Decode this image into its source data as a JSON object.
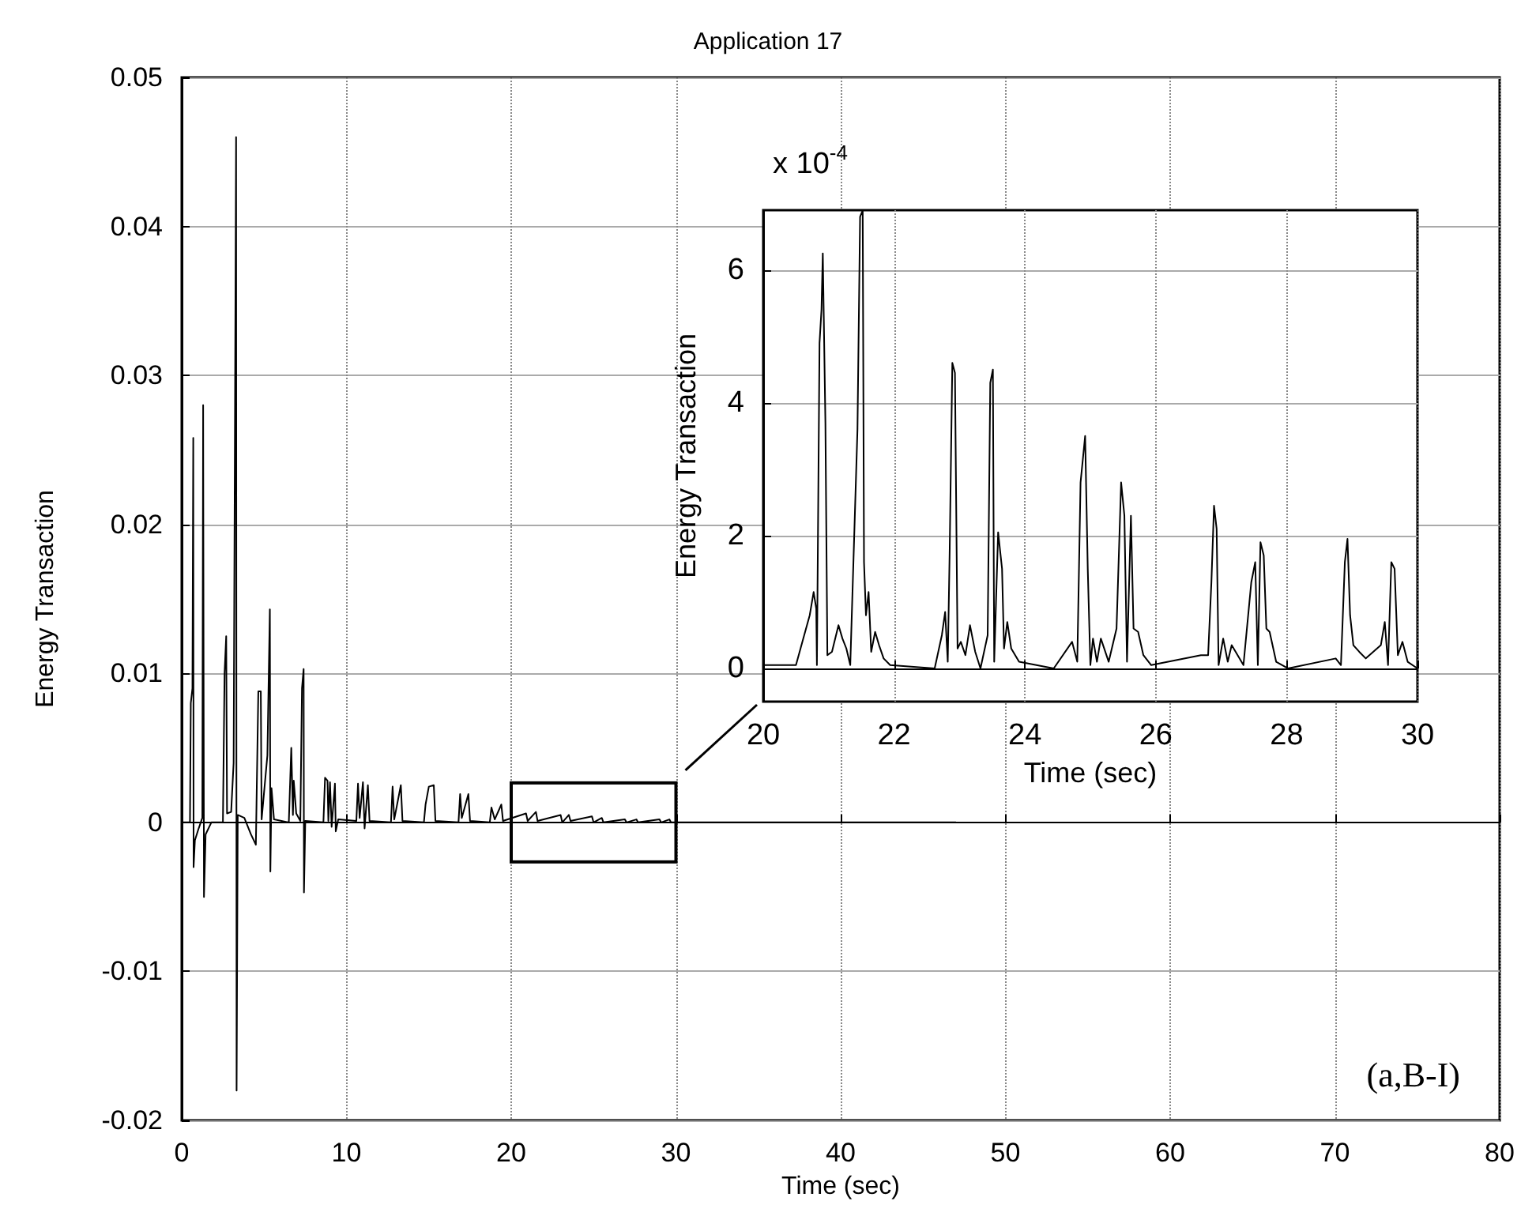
{
  "chart_data": [
    {
      "type": "line",
      "title": "Application 17",
      "xlabel": "Time (sec)",
      "ylabel": "Energy Transaction",
      "xlim": [
        0,
        80
      ],
      "xticks": [
        0,
        10,
        20,
        30,
        40,
        50,
        60,
        70,
        80
      ],
      "ylim": [
        -0.02,
        0.05
      ],
      "yticks": [
        -0.02,
        -0.01,
        0,
        0.01,
        0.02,
        0.03,
        0.04,
        0.05
      ],
      "grid": true,
      "marker": "none",
      "annotations": [
        "(a,B-I)"
      ],
      "x": [
        0,
        0.5,
        0.55,
        0.65,
        0.7,
        0.72,
        0.8,
        1.0,
        1.25,
        1.3,
        1.35,
        1.45,
        1.8,
        2.5,
        2.6,
        2.7,
        2.75,
        3.0,
        3.15,
        3.3,
        3.33,
        3.4,
        3.8,
        4.2,
        4.5,
        4.65,
        4.8,
        4.85,
        5.2,
        5.35,
        5.38,
        5.45,
        5.6,
        6.5,
        6.65,
        6.75,
        6.8,
        6.95,
        7.2,
        7.3,
        7.4,
        7.42,
        7.5,
        8.6,
        8.7,
        8.85,
        8.9,
        9.0,
        9.1,
        9.3,
        9.35,
        9.5,
        10.6,
        10.7,
        10.8,
        11.0,
        11.1,
        11.3,
        11.4,
        12.7,
        12.8,
        12.9,
        13.3,
        13.4,
        14.7,
        14.8,
        15.0,
        15.3,
        15.4,
        16.8,
        16.9,
        17.0,
        17.4,
        17.5,
        18.7,
        18.8,
        19.0,
        19.4,
        19.5,
        20.9,
        21.0,
        21.5,
        21.6,
        23.0,
        23.1,
        23.5,
        23.6,
        24.9,
        25.0,
        25.5,
        25.6,
        26.9,
        27.0,
        27.6,
        27.7,
        29.0,
        29.1,
        29.6,
        29.7,
        47
      ],
      "series": [
        {
          "color": "#000000",
          "values": [
            0,
            0,
            0.008,
            0.009,
            0.0258,
            -0.003,
            -0.0012,
            -0.0005,
            0.0003,
            0.028,
            -0.005,
            -0.0008,
            0,
            0,
            0.01,
            0.0125,
            0.0006,
            0.0007,
            0.004,
            0.046,
            -0.018,
            0.0005,
            0.0003,
            -0.0008,
            -0.0015,
            0.0088,
            0.0088,
            0.0002,
            0.0045,
            0.0143,
            -0.0033,
            0.0023,
            0.0002,
            0,
            0.005,
            0.0005,
            0.0028,
            0.0006,
            0.0001,
            0.009,
            0.0103,
            -0.0047,
            0.0001,
            0,
            0.003,
            0.0028,
            0.0001,
            0.0027,
            -0.0003,
            0.0026,
            -0.0006,
            0.0002,
            0.0001,
            0.0026,
            0.0003,
            0.0027,
            -0.0004,
            0.0025,
            0.0001,
            0,
            0.0024,
            0.0002,
            0.0025,
            0.0001,
            0,
            0.0012,
            0.0024,
            0.0025,
            0.0001,
            0,
            0.0019,
            0.0003,
            0.0019,
            0.0001,
            0,
            0.001,
            0.0002,
            0.0012,
            0.0001,
            0.0006,
            0.0001,
            0.0007,
            0.0001,
            0.0005,
            0,
            0.0005,
            0.0001,
            0.0004,
            0,
            0.0003,
            0,
            0.0002,
            0,
            0.0002,
            0,
            0.0002,
            0,
            0.0002,
            0,
            0
          ]
        }
      ]
    },
    {
      "type": "line",
      "xlabel": "Time (sec)",
      "ylabel": "Energy Transaction",
      "xlim": [
        20,
        30
      ],
      "xticks": [
        20,
        22,
        24,
        26,
        28,
        30
      ],
      "ylim": [
        -0.5,
        6.9
      ],
      "yticks": [
        0,
        2,
        4,
        6
      ],
      "grid": true,
      "marker": "none",
      "annotations": [
        "x 10$^{-4}$"
      ],
      "x": [
        20.0,
        20.5,
        20.71,
        20.77,
        20.81,
        20.82,
        20.86,
        20.89,
        20.91,
        20.95,
        20.98,
        21.05,
        21.15,
        21.21,
        21.27,
        21.33,
        21.44,
        21.48,
        21.52,
        21.54,
        21.57,
        21.61,
        21.65,
        21.71,
        21.77,
        21.84,
        21.94,
        22.62,
        22.73,
        22.78,
        22.82,
        22.85,
        22.89,
        22.93,
        22.97,
        23.02,
        23.09,
        23.16,
        23.24,
        23.32,
        23.43,
        23.47,
        23.51,
        23.53,
        23.59,
        23.65,
        23.68,
        23.73,
        23.79,
        23.91,
        24.44,
        24.72,
        24.8,
        24.85,
        24.92,
        24.96,
        25.0,
        25.04,
        25.1,
        25.16,
        25.28,
        25.4,
        25.47,
        25.52,
        25.56,
        25.62,
        25.66,
        25.73,
        25.81,
        25.93,
        26.69,
        26.8,
        26.85,
        26.89,
        26.93,
        26.96,
        27.03,
        27.1,
        27.16,
        27.34,
        27.46,
        27.52,
        27.56,
        27.6,
        27.65,
        27.69,
        27.74,
        27.84,
        28.02,
        28.75,
        28.83,
        28.89,
        28.93,
        28.97,
        29.02,
        29.11,
        29.21,
        29.44,
        29.5,
        29.55,
        29.6,
        29.65,
        29.7,
        29.77,
        29.85,
        30.0
      ],
      "series": [
        {
          "color": "#000000",
          "values": [
            0.05,
            0.05,
            0.8,
            1.15,
            0.9,
            0.05,
            4.9,
            5.4,
            6.25,
            3.7,
            0.2,
            0.25,
            0.65,
            0.45,
            0.3,
            0.05,
            3.6,
            6.8,
            6.9,
            1.6,
            0.8,
            1.15,
            0.25,
            0.55,
            0.35,
            0.15,
            0.05,
            0,
            0.5,
            0.85,
            0.1,
            1.8,
            4.6,
            4.45,
            0.3,
            0.4,
            0.2,
            0.65,
            0.25,
            0,
            0.5,
            4.3,
            4.5,
            0.1,
            2.05,
            1.5,
            0.3,
            0.7,
            0.3,
            0.1,
            0,
            0.4,
            0.1,
            2.8,
            3.5,
            1.5,
            0.05,
            0.45,
            0.1,
            0.45,
            0.1,
            0.6,
            2.8,
            2.3,
            0.1,
            2.3,
            0.6,
            0.55,
            0.2,
            0.05,
            0.2,
            0.2,
            1.3,
            2.45,
            2.1,
            0.05,
            0.45,
            0.1,
            0.35,
            0.05,
            1.3,
            1.6,
            0.05,
            1.9,
            1.7,
            0.6,
            0.55,
            0.1,
            0,
            0.15,
            0.05,
            1.6,
            1.95,
            0.8,
            0.35,
            0.25,
            0.15,
            0.35,
            0.7,
            0.05,
            1.6,
            1.5,
            0.2,
            0.4,
            0.1,
            0
          ]
        }
      ]
    }
  ]
}
